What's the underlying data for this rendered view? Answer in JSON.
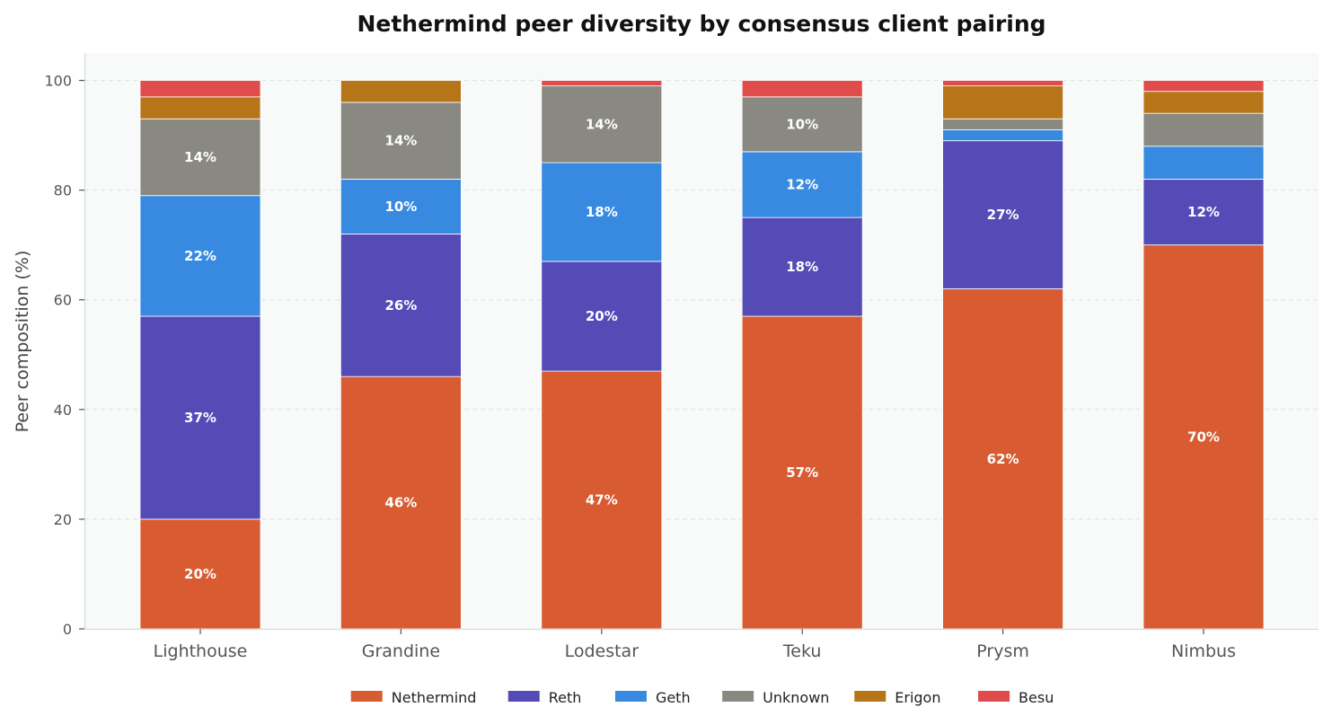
{
  "chart_data": {
    "type": "bar",
    "stacked": true,
    "title": "Nethermind peer diversity by consensus client pairing",
    "xlabel": "",
    "ylabel": "Peer composition (%)",
    "ylim": [
      0,
      105
    ],
    "yticks": [
      0,
      20,
      40,
      60,
      80,
      100
    ],
    "grid": true,
    "legend_position": "bottom-center",
    "categories": [
      "Lighthouse",
      "Grandine",
      "Lodestar",
      "Teku",
      "Prysm",
      "Nimbus"
    ],
    "series": [
      {
        "name": "Nethermind",
        "color": "#d85b31",
        "values": [
          20,
          46,
          47,
          57,
          62,
          70
        ]
      },
      {
        "name": "Reth",
        "color": "#544bb7",
        "values": [
          37,
          26,
          20,
          18,
          27,
          12
        ]
      },
      {
        "name": "Geth",
        "color": "#388ae0",
        "values": [
          22,
          10,
          18,
          12,
          2,
          6
        ]
      },
      {
        "name": "Unknown",
        "color": "#8a8981",
        "values": [
          14,
          14,
          14,
          10,
          2,
          6
        ]
      },
      {
        "name": "Erigon",
        "color": "#b7751a",
        "values": [
          4,
          4,
          0,
          0,
          6,
          4
        ]
      },
      {
        "name": "Besu",
        "color": "#e04b4b",
        "values": [
          3,
          0,
          1,
          3,
          1,
          2
        ]
      }
    ],
    "data_label_min": 10
  }
}
